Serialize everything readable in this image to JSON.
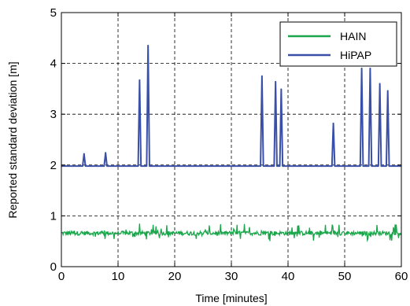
{
  "chart_data": {
    "type": "line",
    "title": "",
    "xlabel": "Time [minutes]",
    "ylabel": "Reported standard deviation [m]",
    "xlim": [
      0,
      60
    ],
    "ylim": [
      0,
      5
    ],
    "xticks": [
      "0",
      "10",
      "20",
      "30",
      "40",
      "50",
      "60"
    ],
    "yticks": [
      "0",
      "1",
      "2",
      "3",
      "4",
      "5"
    ],
    "grid": true,
    "legend_position": "top-right",
    "series": [
      {
        "name": "HAIN",
        "color": "#1aa64a",
        "baseline": 0.66,
        "noise_range": [
          0.5,
          0.85
        ],
        "x": [
          0,
          60
        ]
      },
      {
        "name": "HiPAP",
        "color": "#3a50a8",
        "baseline": 1.98,
        "spikes": [
          {
            "x": 4.0,
            "y": 2.22
          },
          {
            "x": 7.8,
            "y": 2.24
          },
          {
            "x": 13.8,
            "y": 3.67
          },
          {
            "x": 15.3,
            "y": 4.35
          },
          {
            "x": 35.4,
            "y": 3.75
          },
          {
            "x": 37.8,
            "y": 3.64
          },
          {
            "x": 38.8,
            "y": 3.49
          },
          {
            "x": 48.0,
            "y": 2.82
          },
          {
            "x": 53.0,
            "y": 3.9
          },
          {
            "x": 54.5,
            "y": 3.9
          },
          {
            "x": 56.2,
            "y": 3.6
          },
          {
            "x": 57.6,
            "y": 3.46
          }
        ],
        "x": [
          0,
          60
        ]
      }
    ]
  }
}
